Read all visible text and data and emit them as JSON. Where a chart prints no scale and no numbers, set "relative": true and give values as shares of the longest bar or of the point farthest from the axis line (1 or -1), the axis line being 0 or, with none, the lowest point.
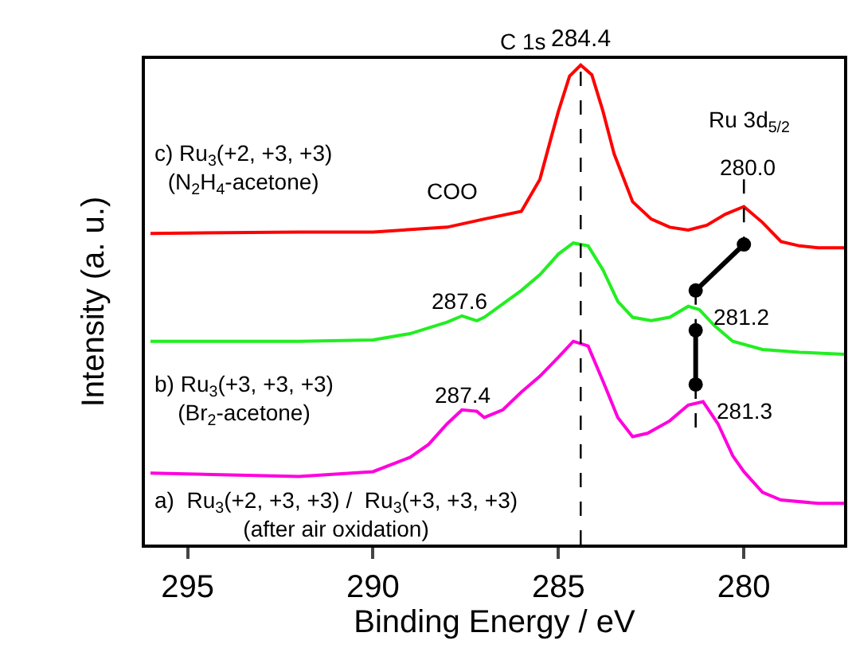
{
  "chart_data": {
    "type": "line",
    "xlabel": "Binding Energy / eV",
    "ylabel": "Intensity (a. u.)",
    "relative": true,
    "xlim": [
      296.15,
      277.3
    ],
    "xticks": [
      295,
      290,
      285,
      280
    ],
    "series": [
      {
        "name": "c) Ru$_{3}$(+2, +3, +3)\n(N$_{2}$H$_{4}$-acetone)",
        "color": "#ff0000",
        "x": [
          296,
          292,
          290,
          288,
          287,
          286,
          285.5,
          285.2,
          285,
          284.7,
          284.4,
          284.1,
          283.8,
          283.5,
          283,
          282.5,
          282,
          281.5,
          281,
          280.5,
          280,
          279.5,
          279,
          278.5,
          278,
          277.3
        ],
        "values": [
          0.649,
          0.652,
          0.652,
          0.662,
          0.679,
          0.695,
          0.762,
          0.848,
          0.904,
          0.977,
          1.0,
          0.98,
          0.904,
          0.815,
          0.715,
          0.679,
          0.662,
          0.656,
          0.666,
          0.689,
          0.705,
          0.672,
          0.632,
          0.623,
          0.619,
          0.619
        ]
      },
      {
        "name": "b) Ru$_{3}$(+3, +3, +3)\n(Br$_{2}$-acetone)",
        "color": "#22ee22",
        "x": [
          296,
          292,
          290,
          289,
          288,
          287.6,
          287.2,
          287,
          286,
          285.5,
          285,
          284.6,
          284.2,
          283.8,
          283.4,
          283,
          282.5,
          282,
          281.5,
          281.2,
          280.8,
          280.3,
          279.5,
          278.5,
          277.3
        ],
        "values": [
          0.424,
          0.424,
          0.427,
          0.44,
          0.464,
          0.477,
          0.467,
          0.474,
          0.53,
          0.563,
          0.606,
          0.629,
          0.623,
          0.573,
          0.507,
          0.474,
          0.467,
          0.474,
          0.497,
          0.49,
          0.457,
          0.424,
          0.407,
          0.401,
          0.397
        ]
      },
      {
        "name": "a)  Ru$_{3}$(+2, +3, +3) /  Ru$_{3}$(+3, +3, +3)\n(after air oxidation)",
        "color": "#ff00dd",
        "x": [
          296,
          292,
          290,
          289,
          288.5,
          288,
          287.6,
          287.2,
          287,
          286.5,
          286,
          285.5,
          285,
          284.6,
          284.2,
          283.8,
          283.4,
          283,
          282.6,
          282,
          281.5,
          281.1,
          280.7,
          280.3,
          280,
          279.5,
          279,
          278,
          277.3
        ],
        "values": [
          0.149,
          0.142,
          0.152,
          0.182,
          0.209,
          0.252,
          0.281,
          0.278,
          0.265,
          0.281,
          0.318,
          0.351,
          0.391,
          0.424,
          0.414,
          0.341,
          0.265,
          0.225,
          0.232,
          0.258,
          0.291,
          0.298,
          0.252,
          0.185,
          0.152,
          0.109,
          0.093,
          0.086,
          0.086
        ]
      },
      {
        "color": "#000000",
        "marker": "circle",
        "x": [
          280.0,
          281.3
        ],
        "values": [
          0.626,
          0.53
        ]
      },
      {
        "color": "#000000",
        "marker": "circle",
        "x": [
          281.3,
          281.3
        ],
        "values": [
          0.447,
          0.334
        ]
      },
      {
        "color": "#000000",
        "line_style": "dashed",
        "x": [
          280.0,
          280.0
        ],
        "values": [
          0.762,
          0.639
        ]
      },
      {
        "color": "#000000",
        "line_style": "dashed",
        "x": [
          281.3,
          281.3
        ],
        "values": [
          0.53,
          0.457
        ]
      },
      {
        "color": "#000000",
        "line_style": "dashed",
        "x": [
          281.3,
          281.3
        ],
        "values": [
          0.334,
          0.235
        ]
      }
    ],
    "ref_lines": [
      {
        "axis": "x",
        "value": 284.4,
        "label": "284.4",
        "line_style": "dashed",
        "color": "#000000"
      }
    ],
    "annotations": [
      "C 1s",
      "Ru 3d$_{5/2}$",
      "280.0",
      "COO",
      "287.6",
      "281.2",
      "287.4",
      "281.3"
    ]
  }
}
